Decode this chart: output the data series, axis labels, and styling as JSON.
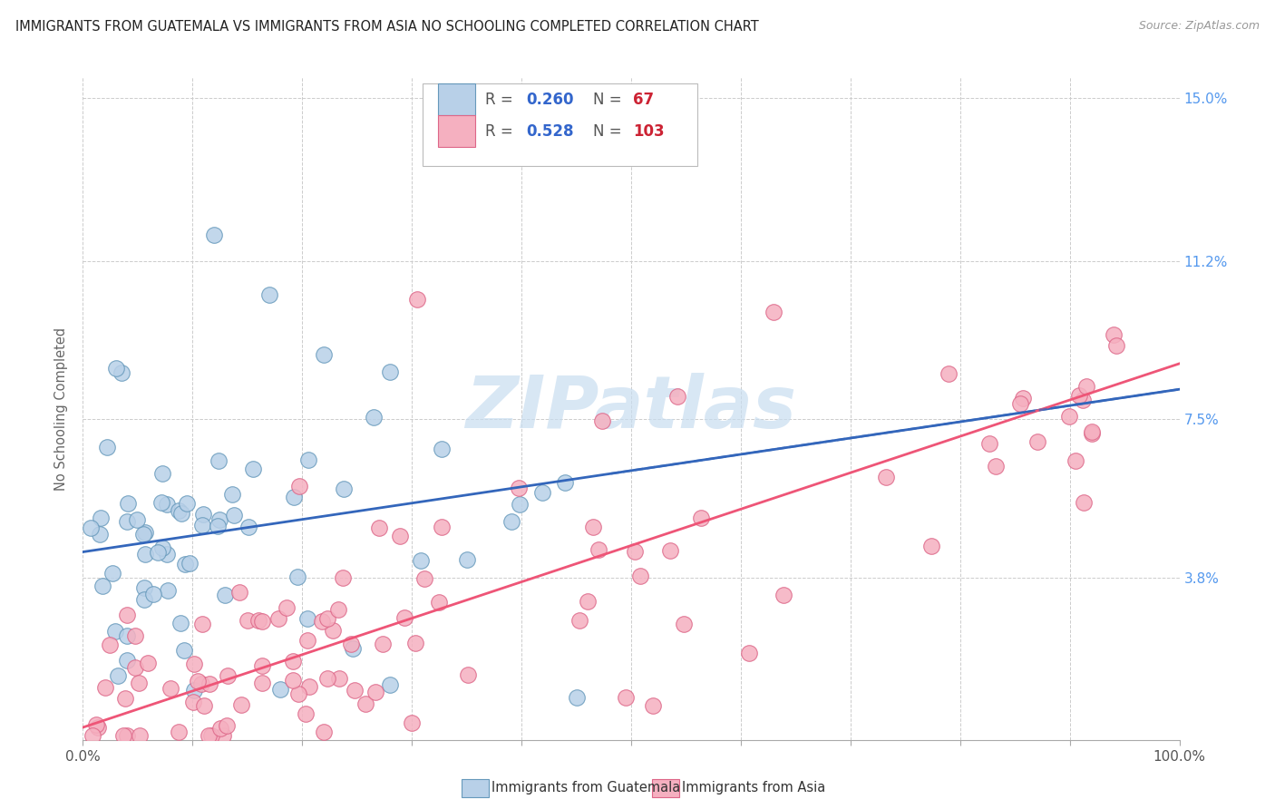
{
  "title": "IMMIGRANTS FROM GUATEMALA VS IMMIGRANTS FROM ASIA NO SCHOOLING COMPLETED CORRELATION CHART",
  "source": "Source: ZipAtlas.com",
  "ylabel": "No Schooling Completed",
  "xlim": [
    0.0,
    1.0
  ],
  "ylim": [
    0.0,
    0.155
  ],
  "yticks": [
    0.0,
    0.038,
    0.075,
    0.112,
    0.15
  ],
  "ytick_labels_right": [
    "3.8%",
    "7.5%",
    "11.2%",
    "15.0%"
  ],
  "series1_label": "Immigrants from Guatemala",
  "series2_label": "Immigrants from Asia",
  "series1_R": "0.260",
  "series1_N": "67",
  "series2_R": "0.528",
  "series2_N": "103",
  "series1_color": "#b8d0e8",
  "series2_color": "#f5b0c0",
  "series1_edge": "#6699bb",
  "series2_edge": "#dd6688",
  "trend1_color": "#3366bb",
  "trend2_color": "#ee5577",
  "watermark_top": "ZIP",
  "watermark_bot": "atlas",
  "watermark_color": "#c8ddf0",
  "title_color": "#222222",
  "source_color": "#999999",
  "legend_label_color": "#555555",
  "legend_R_color": "#3366cc",
  "legend_N_color": "#cc2233",
  "background_color": "#ffffff",
  "grid_color": "#cccccc",
  "right_axis_color": "#5599ee",
  "trend1_intercept": 0.044,
  "trend1_slope": 0.038,
  "trend2_intercept": 0.003,
  "trend2_slope": 0.085
}
